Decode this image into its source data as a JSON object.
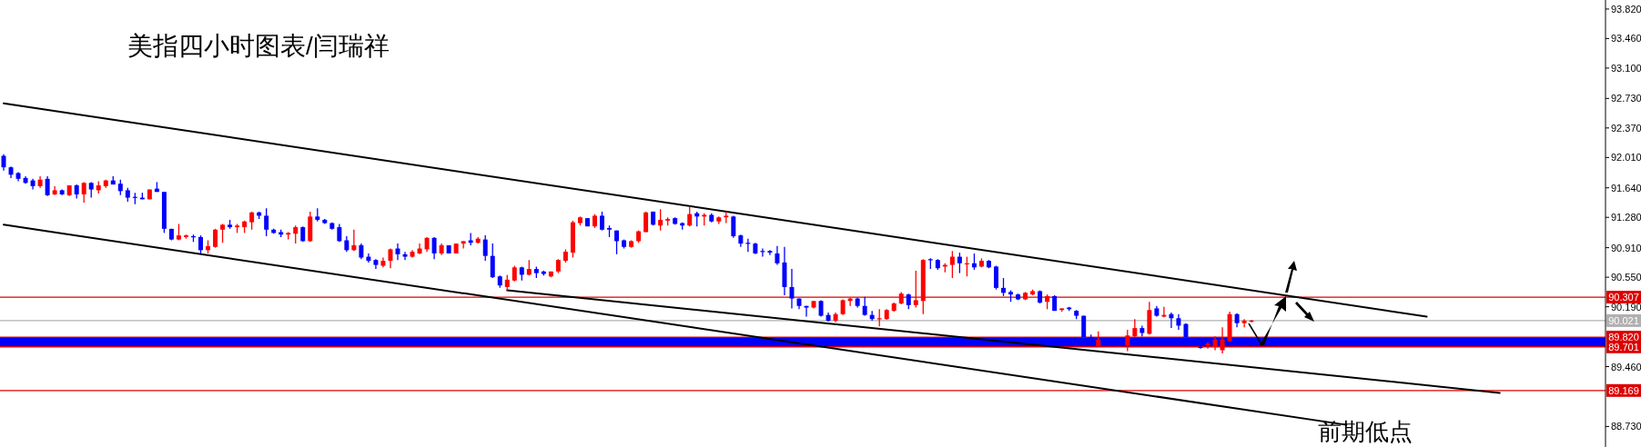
{
  "chart_data": {
    "type": "candlestick",
    "title": "美指四小时图表/闫瑞祥",
    "annotations": [
      "前期低点"
    ],
    "tick_labels": "y",
    "ylim": [
      88.48,
      93.93
    ],
    "categories": [
      null,
      null,
      null,
      null,
      null,
      null,
      null,
      null,
      null,
      null,
      null,
      null,
      null,
      null,
      null,
      null,
      null,
      null,
      null,
      null,
      null,
      null,
      null,
      null,
      null,
      null,
      null,
      null,
      null,
      null,
      null,
      null,
      null,
      null,
      null,
      null,
      null,
      null,
      null,
      null,
      null,
      null,
      null,
      null,
      null,
      null,
      null,
      null,
      null,
      null,
      null,
      null,
      null,
      null,
      null,
      null,
      null,
      null,
      null,
      null,
      null,
      null,
      null,
      null,
      null,
      null,
      null,
      null,
      null,
      null,
      null,
      null,
      null,
      null,
      null,
      null,
      null,
      null,
      null,
      null,
      null,
      null,
      null,
      null,
      null,
      null,
      null,
      null,
      null,
      null,
      null,
      null,
      null,
      null,
      null,
      null,
      null,
      null,
      null,
      null,
      null,
      null,
      null,
      null,
      null,
      null,
      null,
      null,
      null,
      null,
      null,
      null,
      null,
      null,
      null,
      null,
      null,
      null,
      null,
      null,
      null,
      null,
      null,
      null,
      null,
      null,
      null,
      null,
      null,
      null,
      null,
      null,
      null,
      null,
      null,
      null,
      null,
      null,
      null,
      null,
      null,
      null,
      null,
      null,
      null,
      null,
      null,
      null,
      null,
      null,
      null,
      null,
      null,
      null,
      null,
      null,
      null,
      null,
      null,
      null,
      null,
      null,
      null,
      null,
      null,
      null,
      null,
      null,
      null,
      null,
      null,
      null,
      null,
      null,
      null,
      null,
      null,
      null,
      null,
      null,
      null,
      null,
      null,
      null,
      null,
      null,
      null,
      null,
      null,
      null,
      null,
      null,
      null,
      null,
      null,
      null,
      null,
      null,
      null,
      null,
      null,
      null,
      null,
      null,
      null,
      null,
      null,
      null,
      null,
      null,
      null,
      null,
      null,
      null,
      null,
      null,
      null,
      null,
      null,
      null
    ],
    "yticks": [
      {
        "value": 93.82,
        "label": "93.820"
      },
      {
        "value": 93.46,
        "label": "93.460"
      },
      {
        "value": 93.1,
        "label": "93.100"
      },
      {
        "value": 92.73,
        "label": "92.730"
      },
      {
        "value": 92.37,
        "label": "92.370"
      },
      {
        "value": 92.01,
        "label": "92.010"
      },
      {
        "value": 91.64,
        "label": "91.640"
      },
      {
        "value": 91.28,
        "label": "91.280"
      },
      {
        "value": 90.91,
        "label": "90.910"
      },
      {
        "value": 90.55,
        "label": "90.550"
      },
      {
        "value": 90.19,
        "label": "90.190"
      },
      {
        "value": 89.46,
        "label": "89.460"
      },
      {
        "value": 88.73,
        "label": "88.730"
      }
    ],
    "bands": [
      {
        "axis": "y",
        "from": 89.701,
        "to": 89.82,
        "color": "#0000ff"
      }
    ],
    "ref_lines": [
      {
        "axis": "y",
        "value": 90.307,
        "label": "90.307",
        "color": "#dd0000"
      },
      {
        "axis": "y",
        "value": 90.021,
        "label": "90.021",
        "color": "#b0b0b0"
      },
      {
        "axis": "y",
        "value": 89.82,
        "label": "89.820",
        "color": "#dd0000"
      },
      {
        "axis": "y",
        "value": 89.701,
        "label": "89.701",
        "color": "#dd0000"
      },
      {
        "axis": "y",
        "value": 89.169,
        "label": "89.169",
        "color": "#dd0000"
      }
    ],
    "series": [
      {
        "type": "line",
        "color": "#000000",
        "values": [
          92.67,
          null,
          null,
          null,
          null,
          null,
          null,
          null,
          null,
          null,
          null,
          null,
          null,
          null,
          null,
          null,
          null,
          null,
          null,
          null,
          null,
          null,
          null,
          null,
          null,
          null,
          null,
          null,
          null,
          null,
          null,
          null,
          null,
          null,
          null,
          null,
          null,
          null,
          null,
          null,
          null,
          null,
          null,
          null,
          null,
          null,
          null,
          null,
          null,
          null,
          null,
          null,
          null,
          null,
          null,
          null,
          null,
          null,
          null,
          null,
          null,
          null,
          null,
          null,
          null,
          null,
          null,
          null,
          null,
          null,
          null,
          null,
          null,
          null,
          null,
          null,
          null,
          null,
          null,
          null,
          null,
          null,
          null,
          null,
          null,
          null,
          null,
          null,
          null,
          null,
          null,
          null,
          null,
          null,
          null,
          null,
          null,
          null,
          null,
          null,
          null,
          null,
          null,
          null,
          null,
          null,
          null,
          null,
          null,
          null,
          null,
          null,
          null,
          null,
          null,
          null,
          null,
          null,
          null,
          null,
          null,
          null,
          null,
          null,
          null,
          null,
          null,
          null,
          null,
          null,
          null,
          null,
          null,
          null,
          null,
          null,
          null,
          null,
          null,
          null,
          null,
          null,
          null,
          null,
          null,
          null,
          null,
          null,
          null,
          null,
          null,
          null,
          null,
          null,
          null,
          null,
          null,
          null,
          null,
          null,
          null,
          null,
          null,
          null,
          null,
          null,
          null,
          null,
          null,
          null,
          null,
          null,
          null,
          null,
          null,
          null,
          null,
          null,
          null,
          null,
          null,
          null,
          null,
          null,
          null,
          null,
          null,
          null,
          null,
          null,
          null,
          null,
          null,
          null,
          null,
          90.07,
          null,
          null,
          null,
          null,
          null,
          null,
          null,
          null,
          null,
          null,
          null,
          null,
          null,
          null,
          null,
          null,
          null,
          null,
          null,
          null,
          null,
          null,
          null,
          null
        ]
      },
      {
        "type": "line",
        "color": "#000000",
        "values": [
          91.19,
          null,
          null,
          null,
          null,
          null,
          null,
          null,
          null,
          null,
          null,
          null,
          null,
          null,
          null,
          null,
          null,
          null,
          null,
          null,
          null,
          null,
          null,
          null,
          null,
          null,
          null,
          null,
          null,
          null,
          null,
          null,
          null,
          null,
          null,
          null,
          null,
          null,
          null,
          null,
          null,
          null,
          null,
          null,
          null,
          null,
          null,
          null,
          null,
          null,
          null,
          null,
          null,
          null,
          null,
          null,
          null,
          null,
          null,
          null,
          null,
          null,
          null,
          null,
          null,
          null,
          null,
          null,
          null,
          null,
          null,
          null,
          null,
          null,
          null,
          null,
          null,
          null,
          null,
          null,
          null,
          null,
          null,
          null,
          null,
          null,
          null,
          null,
          null,
          null,
          null,
          null,
          null,
          null,
          null,
          null,
          null,
          null,
          null,
          null,
          null,
          null,
          null,
          null,
          null,
          null,
          null,
          null,
          null,
          null,
          null,
          null,
          null,
          null,
          null,
          null,
          null,
          null,
          null,
          null,
          null,
          null,
          null,
          null,
          null,
          null,
          null,
          null,
          null,
          null,
          null,
          null,
          null,
          null,
          null,
          null,
          null,
          null,
          null,
          null,
          null,
          null,
          null,
          null,
          null,
          null,
          null,
          null,
          null,
          null,
          null,
          null,
          null,
          null,
          null,
          null,
          null,
          null,
          null,
          null,
          null,
          null,
          null,
          null,
          null,
          null,
          null,
          null,
          null,
          null,
          null,
          null,
          null,
          null,
          null,
          null,
          null,
          null,
          null,
          null,
          null,
          null,
          null,
          null,
          88.75,
          null,
          null,
          null,
          null,
          null,
          null,
          null,
          null,
          null,
          null,
          null,
          null,
          null,
          null,
          null,
          null,
          null,
          null,
          null,
          null,
          null,
          null,
          null,
          null,
          null,
          null,
          null,
          null,
          null,
          null,
          null,
          null,
          null,
          null,
          null
        ]
      },
      {
        "type": "line",
        "color": "#000000",
        "values": [
          null,
          null,
          null,
          null,
          null,
          null,
          null,
          null,
          null,
          null,
          null,
          null,
          null,
          null,
          null,
          null,
          null,
          null,
          null,
          null,
          null,
          null,
          null,
          null,
          null,
          null,
          null,
          null,
          null,
          null,
          null,
          null,
          null,
          null,
          null,
          null,
          null,
          null,
          null,
          null,
          null,
          null,
          null,
          null,
          null,
          null,
          null,
          null,
          null,
          null,
          null,
          null,
          null,
          null,
          null,
          null,
          null,
          null,
          null,
          null,
          null,
          null,
          null,
          null,
          null,
          null,
          null,
          null,
          null,
          90.39,
          null,
          null,
          null,
          null,
          null,
          null,
          null,
          null,
          null,
          null,
          null,
          null,
          null,
          null,
          null,
          null,
          null,
          null,
          null,
          null,
          null,
          null,
          null,
          null,
          null,
          null,
          null,
          null,
          null,
          null,
          null,
          null,
          null,
          null,
          null,
          null,
          null,
          null,
          null,
          null,
          null,
          null,
          null,
          null,
          null,
          null,
          null,
          null,
          null,
          null,
          null,
          null,
          null,
          null,
          null,
          null,
          null,
          null,
          null,
          null,
          null,
          null,
          null,
          null,
          null,
          null,
          null,
          null,
          null,
          null,
          null,
          null,
          null,
          null,
          null,
          null,
          null,
          null,
          null,
          null,
          null,
          null,
          null,
          null,
          null,
          null,
          null,
          null,
          null,
          null,
          null,
          null,
          null,
          null,
          null,
          null,
          null,
          null,
          null,
          null,
          null,
          null,
          null,
          null,
          null,
          null,
          null,
          null,
          null,
          null,
          null,
          null,
          null,
          null,
          null,
          null,
          null,
          null,
          null,
          null,
          null,
          null,
          null,
          null,
          null,
          null,
          null,
          null,
          null,
          null,
          null,
          null,
          null,
          null,
          null,
          89.14,
          null,
          null,
          null,
          null,
          null,
          null,
          null,
          null,
          null,
          null,
          null,
          null,
          null,
          null
        ]
      }
    ],
    "ohlc": [
      [
        92.03,
        92.05,
        91.85,
        91.89
      ],
      [
        91.89,
        91.9,
        91.76,
        91.8
      ],
      [
        91.82,
        91.83,
        91.72,
        91.75
      ],
      [
        91.76,
        91.78,
        91.69,
        91.7
      ],
      [
        91.73,
        91.75,
        91.62,
        91.66
      ],
      [
        91.66,
        91.78,
        91.64,
        91.74
      ],
      [
        91.75,
        91.78,
        91.54,
        91.55
      ],
      [
        91.56,
        91.66,
        91.55,
        91.61
      ],
      [
        91.61,
        91.62,
        91.55,
        91.56
      ],
      [
        91.55,
        91.67,
        91.54,
        91.67
      ],
      [
        91.67,
        91.68,
        91.51,
        91.56
      ],
      [
        91.56,
        91.71,
        91.46,
        91.7
      ],
      [
        91.7,
        91.71,
        91.52,
        91.62
      ],
      [
        91.61,
        91.72,
        91.57,
        91.67
      ],
      [
        91.66,
        91.74,
        91.64,
        91.73
      ],
      [
        91.73,
        91.78,
        91.68,
        91.68
      ],
      [
        91.69,
        91.74,
        91.55,
        91.6
      ],
      [
        91.61,
        91.64,
        91.47,
        91.52
      ],
      [
        91.53,
        91.58,
        91.44,
        91.52
      ],
      [
        91.52,
        91.58,
        91.5,
        91.5
      ],
      [
        91.5,
        91.62,
        91.5,
        91.62
      ],
      [
        91.63,
        91.71,
        91.59,
        91.59
      ],
      [
        91.59,
        91.59,
        91.09,
        91.14
      ],
      [
        91.14,
        91.14,
        91.0,
        91.01
      ],
      [
        91.01,
        91.2,
        91.0,
        91.06
      ],
      [
        91.04,
        91.07,
        91.02,
        91.06
      ],
      [
        91.05,
        91.07,
        90.98,
        91.04
      ],
      [
        91.04,
        91.06,
        90.84,
        90.88
      ],
      [
        90.88,
        91.0,
        90.84,
        90.93
      ],
      [
        90.92,
        91.14,
        90.91,
        91.13
      ],
      [
        91.13,
        91.2,
        90.97,
        91.19
      ],
      [
        91.19,
        91.25,
        91.14,
        91.16
      ],
      [
        91.16,
        91.2,
        91.09,
        91.18
      ],
      [
        91.16,
        91.24,
        91.09,
        91.23
      ],
      [
        91.22,
        91.35,
        91.13,
        91.34
      ],
      [
        91.34,
        91.35,
        91.26,
        91.3
      ],
      [
        91.3,
        91.39,
        91.05,
        91.13
      ],
      [
        91.13,
        91.14,
        91.08,
        91.09
      ],
      [
        91.1,
        91.13,
        91.04,
        91.07
      ],
      [
        91.07,
        91.1,
        91.01,
        91.09
      ],
      [
        91.08,
        91.18,
        90.96,
        91.16
      ],
      [
        91.16,
        91.17,
        90.98,
        90.99
      ],
      [
        90.99,
        91.35,
        90.98,
        91.29
      ],
      [
        91.29,
        91.39,
        91.23,
        91.25
      ],
      [
        91.25,
        91.26,
        91.2,
        91.21
      ],
      [
        91.21,
        91.22,
        91.13,
        91.14
      ],
      [
        91.16,
        91.2,
        90.98,
        90.99
      ],
      [
        91.0,
        91.05,
        90.86,
        90.88
      ],
      [
        90.88,
        91.13,
        90.87,
        90.94
      ],
      [
        90.94,
        90.96,
        90.77,
        90.79
      ],
      [
        90.8,
        90.84,
        90.73,
        90.75
      ],
      [
        90.76,
        90.77,
        90.65,
        90.7
      ],
      [
        90.69,
        90.79,
        90.67,
        90.75
      ],
      [
        90.75,
        90.9,
        90.66,
        90.89
      ],
      [
        90.9,
        90.96,
        90.76,
        90.83
      ],
      [
        90.83,
        90.86,
        90.76,
        90.8
      ],
      [
        90.8,
        90.88,
        90.79,
        90.86
      ],
      [
        90.84,
        90.96,
        90.83,
        90.9
      ],
      [
        90.89,
        91.04,
        90.86,
        91.03
      ],
      [
        91.03,
        91.04,
        90.77,
        90.84
      ],
      [
        90.84,
        90.96,
        90.82,
        90.94
      ],
      [
        90.94,
        90.94,
        90.84,
        90.84
      ],
      [
        90.84,
        90.96,
        90.84,
        90.96
      ],
      [
        90.96,
        90.99,
        90.9,
        90.99
      ],
      [
        91.0,
        91.09,
        90.94,
        90.97
      ],
      [
        90.97,
        91.04,
        90.96,
        91.02
      ],
      [
        91.01,
        91.06,
        90.75,
        90.81
      ],
      [
        90.81,
        90.96,
        90.54,
        90.55
      ],
      [
        90.56,
        90.57,
        90.42,
        90.45
      ],
      [
        90.43,
        90.58,
        90.39,
        90.52
      ],
      [
        90.51,
        90.69,
        90.5,
        90.67
      ],
      [
        90.67,
        90.68,
        90.51,
        90.58
      ],
      [
        90.58,
        90.76,
        90.57,
        90.65
      ],
      [
        90.65,
        90.68,
        90.54,
        90.6
      ],
      [
        90.62,
        90.63,
        90.57,
        90.59
      ],
      [
        90.56,
        90.62,
        90.55,
        90.62
      ],
      [
        90.62,
        90.77,
        90.6,
        90.76
      ],
      [
        90.75,
        90.89,
        90.73,
        90.86
      ],
      [
        90.85,
        91.24,
        90.79,
        91.22
      ],
      [
        91.21,
        91.29,
        91.18,
        91.28
      ],
      [
        91.27,
        91.27,
        91.17,
        91.17
      ],
      [
        91.17,
        91.32,
        91.15,
        91.3
      ],
      [
        91.3,
        91.35,
        91.12,
        91.13
      ],
      [
        91.15,
        91.18,
        91.04,
        91.13
      ],
      [
        91.12,
        91.12,
        90.83,
        90.99
      ],
      [
        91.0,
        91.01,
        90.9,
        90.92
      ],
      [
        90.92,
        91.0,
        90.91,
        90.99
      ],
      [
        90.99,
        91.12,
        90.97,
        91.11
      ],
      [
        91.1,
        91.35,
        91.1,
        91.34
      ],
      [
        91.35,
        91.35,
        91.18,
        91.19
      ],
      [
        91.18,
        91.38,
        91.12,
        91.25
      ],
      [
        91.24,
        91.28,
        91.18,
        91.26
      ],
      [
        91.27,
        91.28,
        91.19,
        91.2
      ],
      [
        91.21,
        91.22,
        91.13,
        91.18
      ],
      [
        91.18,
        91.41,
        91.17,
        91.32
      ],
      [
        91.33,
        91.35,
        91.17,
        91.29
      ],
      [
        91.29,
        91.33,
        91.18,
        91.31
      ],
      [
        91.31,
        91.33,
        91.22,
        91.23
      ],
      [
        91.23,
        91.29,
        91.2,
        91.28
      ],
      [
        91.28,
        91.35,
        91.21,
        91.3
      ],
      [
        91.29,
        91.3,
        91.03,
        91.05
      ],
      [
        91.06,
        91.07,
        90.92,
        90.96
      ],
      [
        90.97,
        91.02,
        90.86,
        90.96
      ],
      [
        90.96,
        90.97,
        90.83,
        90.84
      ],
      [
        90.87,
        90.9,
        90.8,
        90.86
      ],
      [
        90.87,
        90.88,
        90.82,
        90.85
      ],
      [
        90.84,
        90.93,
        90.7,
        90.72
      ],
      [
        90.73,
        90.92,
        90.33,
        90.43
      ],
      [
        90.43,
        90.65,
        90.17,
        90.29
      ],
      [
        90.29,
        90.29,
        90.16,
        90.2
      ],
      [
        90.2,
        90.2,
        90.07,
        90.18
      ],
      [
        90.18,
        90.26,
        90.17,
        90.26
      ],
      [
        90.26,
        90.27,
        90.07,
        90.08
      ],
      [
        90.09,
        90.12,
        90.01,
        90.02
      ],
      [
        90.02,
        90.12,
        90.0,
        90.1
      ],
      [
        90.1,
        90.28,
        90.09,
        90.27
      ],
      [
        90.26,
        90.3,
        90.2,
        90.29
      ],
      [
        90.29,
        90.3,
        90.18,
        90.2
      ],
      [
        90.2,
        90.31,
        90.08,
        90.09
      ],
      [
        90.09,
        90.14,
        90.02,
        90.04
      ],
      [
        90.04,
        90.16,
        89.95,
        90.05
      ],
      [
        90.04,
        90.16,
        90.03,
        90.15
      ],
      [
        90.14,
        90.24,
        90.13,
        90.23
      ],
      [
        90.23,
        90.37,
        90.22,
        90.35
      ],
      [
        90.34,
        90.35,
        90.16,
        90.21
      ],
      [
        90.21,
        90.63,
        90.18,
        90.27
      ],
      [
        90.26,
        90.77,
        90.1,
        90.76
      ],
      [
        90.77,
        90.78,
        90.65,
        90.76
      ],
      [
        90.76,
        90.77,
        90.64,
        90.66
      ],
      [
        90.68,
        90.72,
        90.61,
        90.7
      ],
      [
        90.7,
        90.87,
        90.54,
        90.8
      ],
      [
        90.8,
        90.85,
        90.6,
        90.72
      ],
      [
        90.71,
        90.8,
        90.56,
        90.72
      ],
      [
        90.72,
        90.84,
        90.64,
        90.67
      ],
      [
        90.68,
        90.78,
        90.67,
        90.75
      ],
      [
        90.75,
        90.76,
        90.66,
        90.67
      ],
      [
        90.68,
        90.69,
        90.4,
        90.42
      ],
      [
        90.42,
        90.54,
        90.32,
        90.36
      ],
      [
        90.37,
        90.39,
        90.25,
        90.34
      ],
      [
        90.34,
        90.35,
        90.27,
        90.28
      ],
      [
        90.28,
        90.37,
        90.27,
        90.36
      ],
      [
        90.34,
        90.4,
        90.33,
        90.38
      ],
      [
        90.38,
        90.39,
        90.23,
        90.24
      ],
      [
        90.25,
        90.34,
        90.16,
        90.32
      ],
      [
        90.32,
        90.33,
        90.14,
        90.14
      ],
      [
        90.15,
        90.17,
        90.13,
        90.17
      ],
      [
        90.18,
        90.19,
        90.14,
        90.16
      ],
      [
        90.14,
        90.15,
        90.04,
        90.08
      ],
      [
        90.08,
        90.08,
        89.82,
        89.82
      ],
      [
        89.82,
        89.85,
        89.79,
        89.81
      ],
      [
        89.71,
        89.89,
        89.7,
        89.79
      ],
      null,
      null,
      null,
      [
        89.72,
        89.91,
        89.65,
        89.84
      ],
      [
        89.83,
        90.04,
        89.82,
        89.93
      ],
      [
        89.93,
        89.96,
        89.83,
        89.87
      ],
      [
        89.86,
        90.25,
        89.85,
        90.15
      ],
      [
        90.17,
        90.2,
        90.07,
        90.08
      ],
      [
        90.07,
        90.19,
        90.06,
        90.09
      ],
      [
        90.1,
        90.12,
        89.93,
        90.05
      ],
      [
        90.05,
        90.1,
        89.91,
        89.96
      ],
      [
        89.98,
        89.99,
        89.81,
        89.82
      ],
      null,
      [
        89.7,
        89.71,
        89.68,
        89.69
      ],
      [
        89.72,
        89.76,
        89.68,
        89.74
      ],
      [
        89.7,
        89.83,
        89.66,
        89.79
      ],
      [
        89.66,
        89.94,
        89.62,
        89.79
      ],
      [
        89.77,
        90.13,
        89.76,
        90.1
      ],
      [
        90.1,
        90.11,
        89.94,
        89.99
      ],
      [
        89.99,
        90.04,
        89.94,
        90.02
      ],
      [
        90.01,
        90.03,
        90.0,
        90.02
      ],
      null,
      null,
      null,
      null,
      null,
      null,
      null,
      null,
      null,
      null,
      null,
      null,
      null,
      null,
      null,
      null,
      null,
      null,
      null,
      null,
      null,
      null,
      null,
      null,
      null,
      null,
      null,
      null,
      null,
      null,
      null,
      null,
      null,
      null,
      null,
      null,
      null,
      null,
      null,
      null,
      null,
      null,
      null,
      null,
      null,
      null,
      null,
      null
    ],
    "colors": [
      "#0000ff",
      "#0000ff",
      "#0000ff",
      "#0000ff",
      "#0000ff",
      "#ff0000",
      "#0000ff",
      "#ff0000",
      "#0000ff",
      "#ff0000",
      "#0000ff",
      "#ff0000",
      "#0000ff",
      "#ff0000",
      "#ff0000",
      "#0000ff",
      "#0000ff",
      "#0000ff",
      "#0000ff",
      "#0000ff",
      "#ff0000",
      "#0000ff",
      "#0000ff",
      "#0000ff",
      "#ff0000",
      "#ff0000",
      "#0000ff",
      "#0000ff",
      "#ff0000",
      "#ff0000",
      "#ff0000",
      "#0000ff",
      "#ff0000",
      "#ff0000",
      "#ff0000",
      "#0000ff",
      "#0000ff",
      "#0000ff",
      "#0000ff",
      "#ff0000",
      "#ff0000",
      "#0000ff",
      "#ff0000",
      "#0000ff",
      "#0000ff",
      "#0000ff",
      "#0000ff",
      "#0000ff",
      "#ff0000",
      "#0000ff",
      "#0000ff",
      "#0000ff",
      "#ff0000",
      "#ff0000",
      "#0000ff",
      "#0000ff",
      "#ff0000",
      "#ff0000",
      "#ff0000",
      "#0000ff",
      "#ff0000",
      "#0000ff",
      "#ff0000",
      "#ff0000",
      "#0000ff",
      "#ff0000",
      "#0000ff",
      "#0000ff",
      "#0000ff",
      "#ff0000",
      "#ff0000",
      "#0000ff",
      "#ff0000",
      "#0000ff",
      "#0000ff",
      "#ff0000",
      "#ff0000",
      "#ff0000",
      "#ff0000",
      "#ff0000",
      "#0000ff",
      "#ff0000",
      "#0000ff",
      "#0000ff",
      "#0000ff",
      "#0000ff",
      "#ff0000",
      "#ff0000",
      "#ff0000",
      "#0000ff",
      "#ff0000",
      "#ff0000",
      "#0000ff",
      "#0000ff",
      "#ff0000",
      "#0000ff",
      "#ff0000",
      "#0000ff",
      "#ff0000",
      "#ff0000",
      "#0000ff",
      "#0000ff",
      "#0000ff",
      "#0000ff",
      "#0000ff",
      "#0000ff",
      "#0000ff",
      "#0000ff",
      "#0000ff",
      "#0000ff",
      "#0000ff",
      "#ff0000",
      "#0000ff",
      "#0000ff",
      "#ff0000",
      "#ff0000",
      "#ff0000",
      "#0000ff",
      "#0000ff",
      "#0000ff",
      "#ff0000",
      "#ff0000",
      "#ff0000",
      "#ff0000",
      "#0000ff",
      "#ff0000",
      "#ff0000",
      "#0000ff",
      "#0000ff",
      "#ff0000",
      "#ff0000",
      "#0000ff",
      "#ff0000",
      "#0000ff",
      "#ff0000",
      "#0000ff",
      "#0000ff",
      "#0000ff",
      "#0000ff",
      "#0000ff",
      "#ff0000",
      "#ff0000",
      "#0000ff",
      "#ff0000",
      "#0000ff",
      "#ff0000",
      "#0000ff",
      "#0000ff",
      "#0000ff",
      "#0000ff",
      "#ff0000",
      null,
      null,
      null,
      "#ff0000",
      "#ff0000",
      "#0000ff",
      "#ff0000",
      "#0000ff",
      "#ff0000",
      "#0000ff",
      "#0000ff",
      "#0000ff",
      null,
      "#0000ff",
      "#ff0000",
      "#ff0000",
      "#ff0000",
      "#ff0000",
      "#0000ff",
      "#ff0000",
      "#ff0000",
      null,
      null,
      null,
      null,
      null,
      null,
      null,
      null,
      null,
      null,
      null,
      null,
      null,
      null,
      null,
      null,
      null,
      null,
      null,
      null,
      null,
      null,
      null,
      null,
      null,
      null,
      null,
      null,
      null,
      null,
      null,
      null,
      null,
      null,
      null,
      null,
      null,
      null,
      null,
      null,
      null,
      null,
      null,
      null,
      null,
      null,
      null,
      null
    ]
  }
}
